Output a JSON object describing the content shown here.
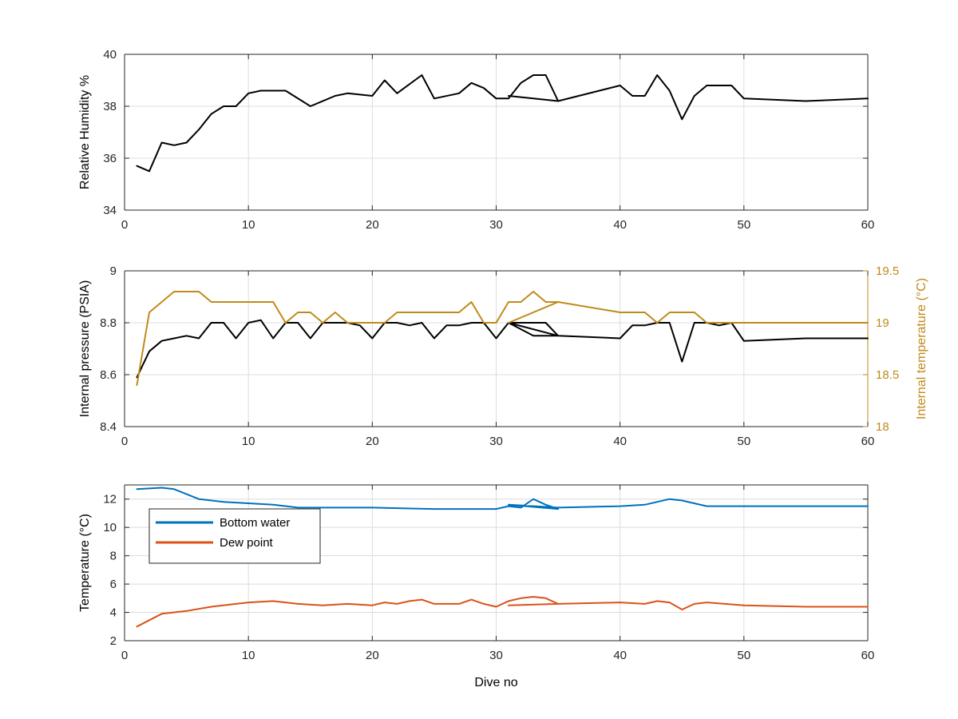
{
  "chart_data": [
    {
      "type": "line",
      "title": "",
      "xlabel": "",
      "ylabel": "Relative Humidity %",
      "xlim": [
        0,
        60
      ],
      "ylim": [
        34,
        40
      ],
      "xticks": [
        "0",
        "10",
        "20",
        "30",
        "40",
        "50",
        "60"
      ],
      "yticks": [
        "34",
        "36",
        "38",
        "40"
      ],
      "grid": true,
      "series": [
        {
          "color": "#000000",
          "x": [
            1,
            2,
            3,
            4,
            5,
            6,
            7,
            8,
            9,
            10,
            11,
            12,
            13,
            15,
            17,
            18,
            20,
            21,
            22,
            24,
            25,
            27,
            28,
            29,
            30,
            31,
            32,
            33,
            34,
            35,
            31,
            35,
            40,
            41,
            42,
            43,
            44,
            45,
            46,
            47,
            49,
            50,
            55,
            60
          ],
          "y": [
            35.7,
            35.5,
            36.6,
            36.5,
            36.6,
            37.1,
            37.7,
            38.0,
            38.0,
            38.5,
            38.6,
            38.6,
            38.6,
            38.0,
            38.4,
            38.5,
            38.4,
            39.0,
            38.5,
            39.2,
            38.3,
            38.5,
            38.9,
            38.7,
            38.3,
            38.3,
            38.9,
            39.2,
            39.2,
            38.2,
            38.4,
            38.2,
            38.8,
            38.4,
            38.4,
            39.2,
            38.6,
            37.5,
            38.4,
            38.8,
            38.8,
            38.3,
            38.2,
            38.3
          ]
        }
      ]
    },
    {
      "type": "line",
      "title": "",
      "xlabel": "",
      "ylabel": "Internal pressure (PSIA)",
      "ylabel_right": "Internal temperature (°C)",
      "xlim": [
        0,
        60
      ],
      "ylim": [
        8.4,
        9.0
      ],
      "ylim_right": [
        18,
        19.5
      ],
      "xticks": [
        "0",
        "10",
        "20",
        "30",
        "40",
        "50",
        "60"
      ],
      "yticks": [
        "8.4",
        "8.6",
        "8.8",
        "9"
      ],
      "yticks_right": [
        "18",
        "18.5",
        "19",
        "19.5"
      ],
      "grid": true,
      "series": [
        {
          "axis": "left",
          "color": "#000000",
          "x": [
            1,
            2,
            3,
            4,
            5,
            6,
            7,
            8,
            9,
            10,
            11,
            12,
            13,
            14,
            15,
            16,
            18,
            19,
            20,
            21,
            22,
            23,
            24,
            25,
            26,
            27,
            28,
            29,
            30,
            31,
            34,
            35,
            31,
            33,
            35,
            40,
            41,
            42,
            43,
            44,
            45,
            46,
            47,
            48,
            49,
            50,
            55,
            60
          ],
          "y": [
            8.59,
            8.69,
            8.73,
            8.74,
            8.75,
            8.74,
            8.8,
            8.8,
            8.74,
            8.8,
            8.81,
            8.74,
            8.8,
            8.8,
            8.74,
            8.8,
            8.8,
            8.79,
            8.74,
            8.8,
            8.8,
            8.79,
            8.8,
            8.74,
            8.79,
            8.79,
            8.8,
            8.8,
            8.74,
            8.8,
            8.8,
            8.75,
            8.8,
            8.75,
            8.75,
            8.74,
            8.79,
            8.79,
            8.8,
            8.8,
            8.65,
            8.8,
            8.8,
            8.79,
            8.8,
            8.73,
            8.74,
            8.74
          ]
        },
        {
          "axis": "right",
          "color": "#c08a1a",
          "x": [
            1,
            2,
            3,
            4,
            5,
            6,
            7,
            8,
            9,
            10,
            11,
            12,
            13,
            14,
            15,
            16,
            17,
            18,
            19,
            20,
            21,
            22,
            23,
            24,
            25,
            26,
            27,
            28,
            29,
            30,
            31,
            32,
            33,
            34,
            35,
            31,
            35,
            40,
            41,
            42,
            43,
            44,
            45,
            46,
            47,
            50,
            55,
            60
          ],
          "y": [
            18.4,
            19.1,
            19.2,
            19.3,
            19.3,
            19.3,
            19.2,
            19.2,
            19.2,
            19.2,
            19.2,
            19.2,
            19.0,
            19.1,
            19.1,
            19.0,
            19.1,
            19.0,
            19.0,
            19.0,
            19.0,
            19.1,
            19.1,
            19.1,
            19.1,
            19.1,
            19.1,
            19.2,
            19.0,
            19.0,
            19.2,
            19.2,
            19.3,
            19.2,
            19.2,
            19.0,
            19.2,
            19.1,
            19.1,
            19.1,
            19.0,
            19.1,
            19.1,
            19.1,
            19.0,
            19.0,
            19.0,
            19.0
          ]
        }
      ]
    },
    {
      "type": "line",
      "title": "",
      "xlabel": "Dive no",
      "ylabel": "Temperature (°C)",
      "xlim": [
        0,
        60
      ],
      "ylim": [
        2,
        13
      ],
      "xticks": [
        "0",
        "10",
        "20",
        "30",
        "40",
        "50",
        "60"
      ],
      "yticks": [
        "2",
        "4",
        "6",
        "8",
        "10",
        "12"
      ],
      "grid": true,
      "legend_position": "top-left",
      "series": [
        {
          "name": "Bottom water",
          "color": "#0072bd",
          "x": [
            1,
            3,
            4,
            6,
            8,
            10,
            12,
            14,
            20,
            25,
            30,
            31,
            32,
            33,
            34,
            35,
            31,
            35,
            40,
            42,
            44,
            45,
            47,
            50,
            55,
            60
          ],
          "y": [
            12.7,
            12.8,
            12.7,
            12.0,
            11.8,
            11.7,
            11.6,
            11.4,
            11.4,
            11.3,
            11.3,
            11.5,
            11.4,
            12.0,
            11.6,
            11.3,
            11.6,
            11.4,
            11.5,
            11.6,
            12.0,
            11.9,
            11.5,
            11.5,
            11.5,
            11.5
          ]
        },
        {
          "name": "Dew point",
          "color": "#d95319",
          "x": [
            1,
            3,
            5,
            7,
            9,
            10,
            12,
            14,
            16,
            18,
            20,
            21,
            22,
            23,
            24,
            25,
            26,
            27,
            28,
            29,
            30,
            31,
            32,
            33,
            34,
            35,
            31,
            35,
            40,
            42,
            43,
            44,
            45,
            46,
            47,
            50,
            55,
            60
          ],
          "y": [
            3.0,
            3.9,
            4.1,
            4.4,
            4.6,
            4.7,
            4.8,
            4.6,
            4.5,
            4.6,
            4.5,
            4.7,
            4.6,
            4.8,
            4.9,
            4.6,
            4.6,
            4.6,
            4.9,
            4.6,
            4.4,
            4.8,
            5.0,
            5.1,
            5.0,
            4.6,
            4.5,
            4.6,
            4.7,
            4.6,
            4.8,
            4.7,
            4.2,
            4.6,
            4.7,
            4.5,
            4.4,
            4.4
          ]
        }
      ]
    }
  ]
}
